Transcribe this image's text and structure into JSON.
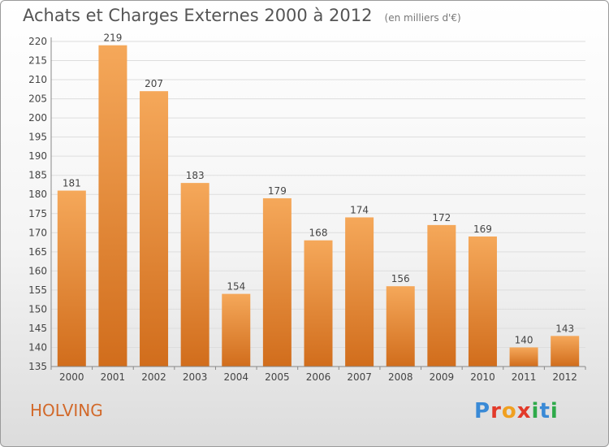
{
  "title": "Achats et Charges Externes 2000 à 2012",
  "unit_note": "(en milliers d'€)",
  "commune": "HOLVING",
  "logo": {
    "letters": [
      "P",
      "r",
      "o",
      "x",
      "i",
      "t",
      "i"
    ],
    "colors": [
      "#3a8ad6",
      "#e23a2a",
      "#f0a020",
      "#e23a2a",
      "#2eaa4a",
      "#3a8ad6",
      "#2eaa4a"
    ]
  },
  "colors": {
    "bar_light": "#f5a85a",
    "bar_dark": "#d16d1c",
    "grid": "#dddddd",
    "axis": "#888888",
    "text": "#444444"
  },
  "chart_data": {
    "type": "bar",
    "categories": [
      "2000",
      "2001",
      "2002",
      "2003",
      "2004",
      "2005",
      "2006",
      "2007",
      "2008",
      "2009",
      "2010",
      "2011",
      "2012"
    ],
    "values": [
      181,
      219,
      207,
      183,
      154,
      179,
      168,
      174,
      156,
      172,
      169,
      140,
      143
    ],
    "ylim": [
      135,
      220
    ],
    "yticks": [
      135,
      140,
      145,
      150,
      155,
      160,
      165,
      170,
      175,
      180,
      185,
      190,
      195,
      200,
      205,
      210,
      215,
      220
    ],
    "grid": true
  }
}
